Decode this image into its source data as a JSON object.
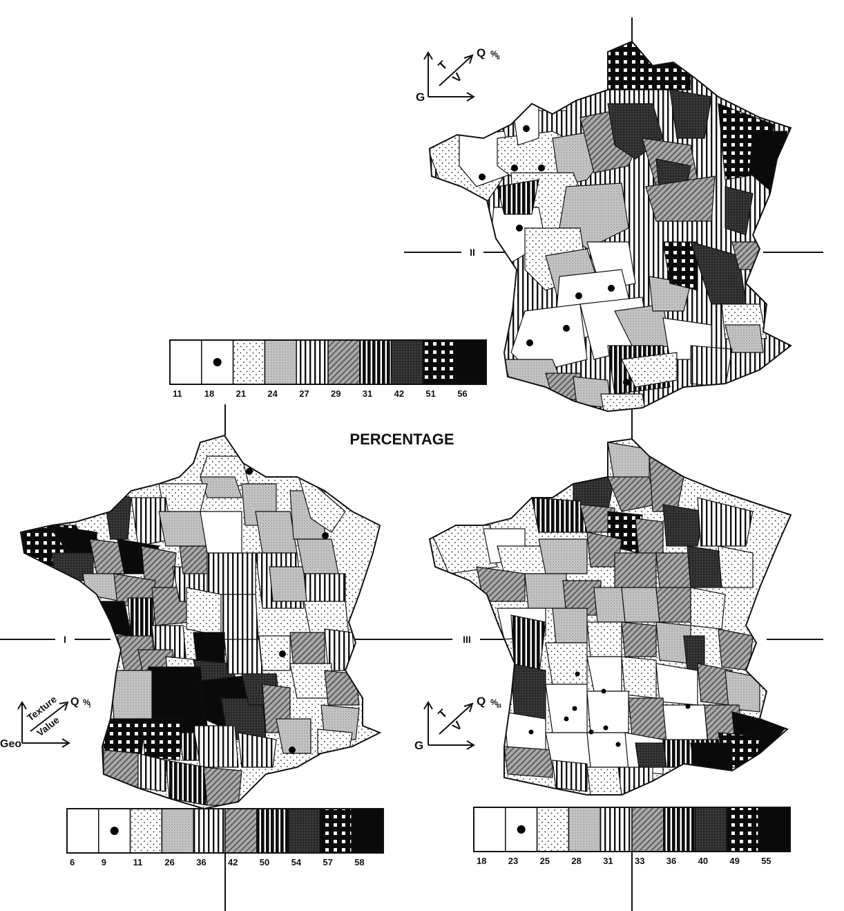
{
  "title": "PERCENTAGE",
  "axis_labels": {
    "I": "I",
    "II": "II",
    "III": "III"
  },
  "maps": [
    {
      "id": "I",
      "key": {
        "g": "Geo",
        "t": "Texture",
        "v": "Value",
        "q": "Q",
        "sub": "%",
        "subsub": "I"
      },
      "legend": [
        "6",
        "9",
        "11",
        "26",
        "36",
        "42",
        "50",
        "54",
        "57",
        "58"
      ]
    },
    {
      "id": "II",
      "key": {
        "g": "G",
        "t": "T",
        "v": "V",
        "q": "Q",
        "sub": "%",
        "subsub": "II"
      },
      "legend": [
        "11",
        "18",
        "21",
        "24",
        "27",
        "29",
        "31",
        "42",
        "51",
        "56"
      ]
    },
    {
      "id": "III",
      "key": {
        "g": "G",
        "t": "T",
        "v": "V",
        "q": "Q",
        "sub": "%",
        "subsub": "III"
      },
      "legend": [
        "18",
        "23",
        "25",
        "28",
        "31",
        "33",
        "36",
        "40",
        "49",
        "55"
      ]
    }
  ],
  "patterns": [
    "blank",
    "dot-symbol",
    "fine-dots",
    "light-stipple",
    "vertical-lines",
    "diagonal-hatch",
    "heavy-vertical",
    "dark-crosshatch",
    "black-white-squares",
    "solid-black"
  ]
}
